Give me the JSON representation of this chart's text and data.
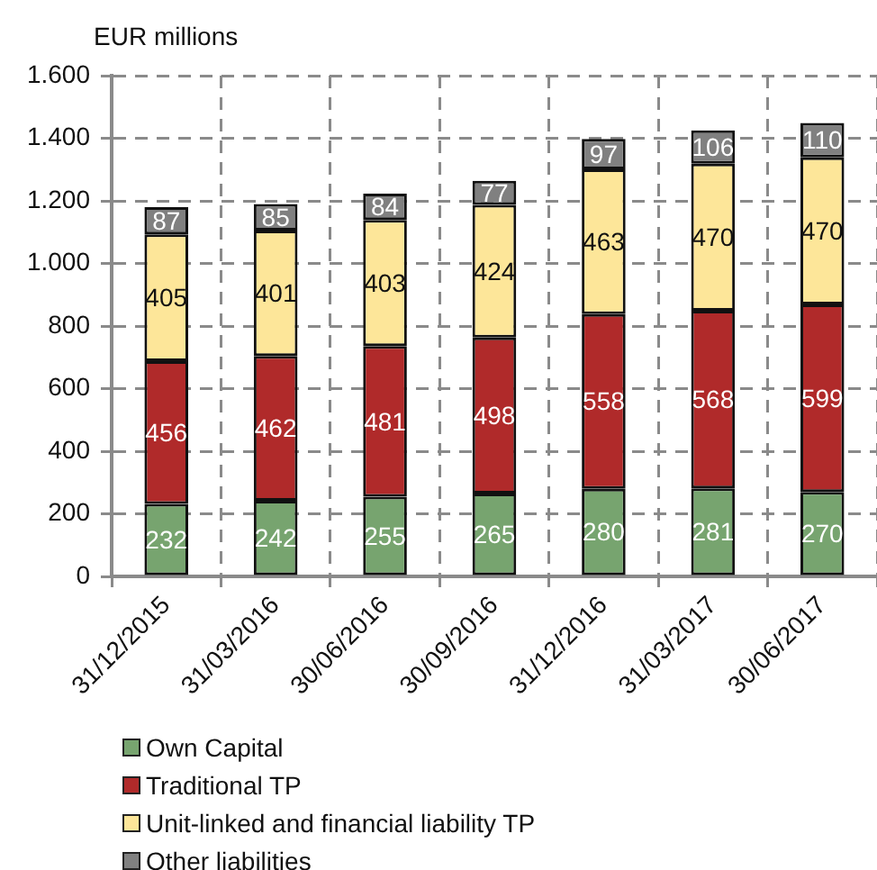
{
  "chart_data": {
    "type": "bar",
    "ylabel": "EUR millions",
    "categories": [
      "31/12/2015",
      "31/03/2016",
      "30/06/2016",
      "30/09/2016",
      "31/12/2016",
      "31/03/2017",
      "30/06/2017"
    ],
    "series": [
      {
        "name": "Own Capital",
        "color": "#77a46f",
        "values": [
          232,
          242,
          255,
          265,
          280,
          281,
          270
        ]
      },
      {
        "name": "Traditional TP",
        "color": "#b02a2a",
        "values": [
          456,
          462,
          481,
          498,
          558,
          568,
          599
        ]
      },
      {
        "name": "Unit-linked and financial liability TP",
        "color": "#fde699",
        "values": [
          405,
          401,
          403,
          424,
          463,
          470,
          470
        ]
      },
      {
        "name": "Other liabilities",
        "color": "#808080",
        "values": [
          87,
          85,
          84,
          77,
          97,
          106,
          110
        ]
      }
    ],
    "stacked": true,
    "ylim": [
      0,
      1600
    ],
    "yticks": [
      0,
      200,
      400,
      600,
      800,
      {
        "value": 1000,
        "label": "1.000"
      },
      {
        "value": 1200,
        "label": "1.200"
      },
      {
        "value": 1400,
        "label": "1.400"
      },
      {
        "value": 1600,
        "label": "1.600"
      }
    ],
    "grid": true,
    "legend": "bottom left",
    "data_labels": true
  }
}
